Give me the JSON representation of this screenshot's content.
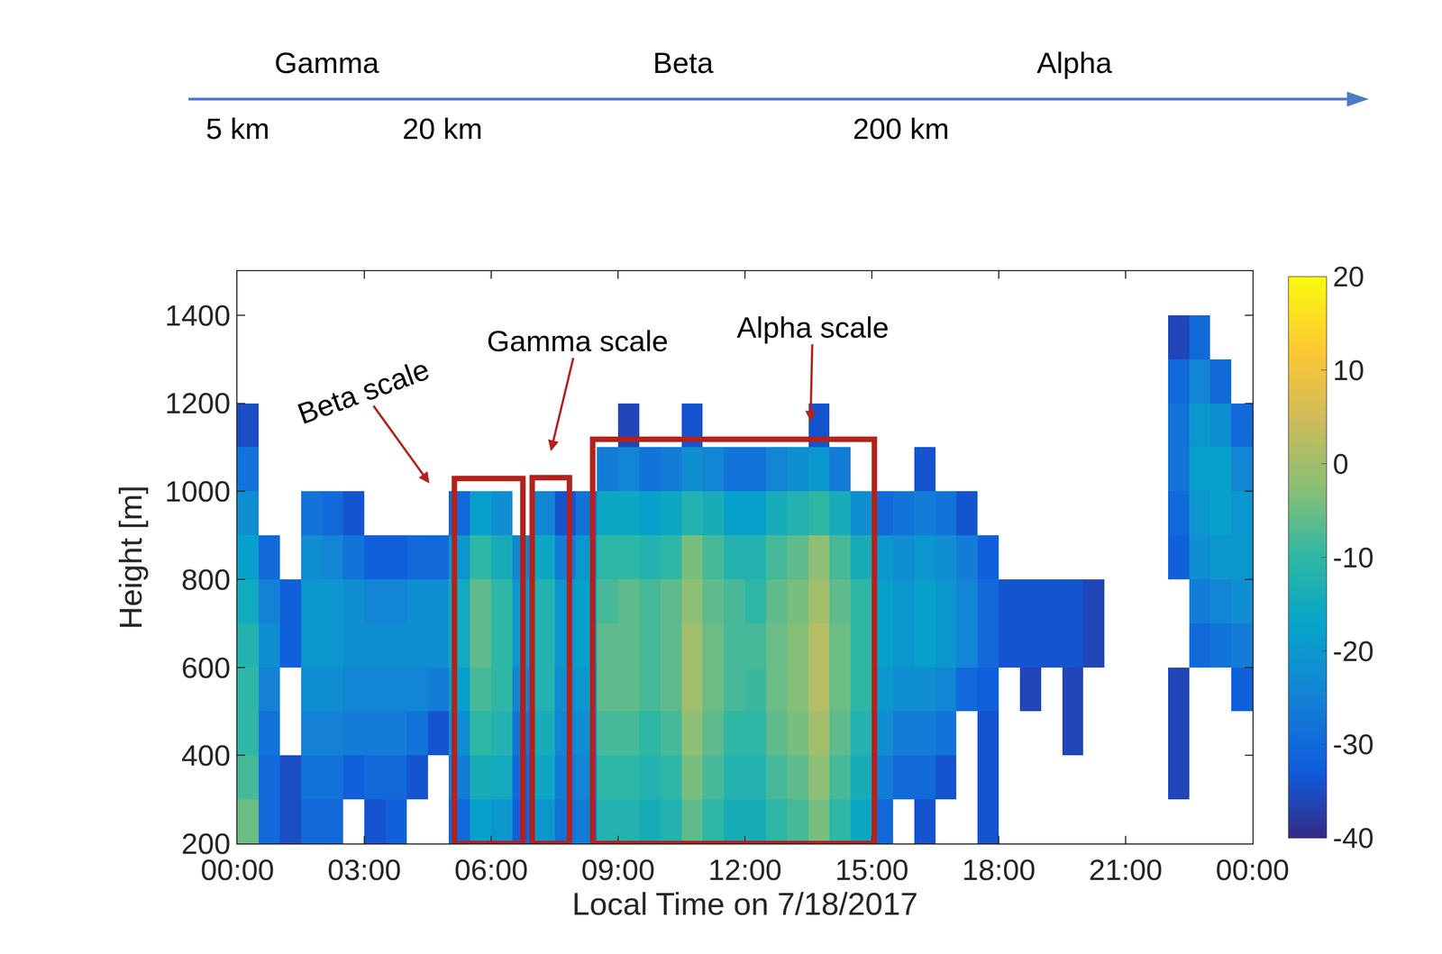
{
  "chart_data": {
    "type": "heatmap",
    "x_label": "Local Time on 7/18/2017",
    "y_label": "Height [m]",
    "xlim": [
      0,
      24
    ],
    "xticks": [
      {
        "value": 0,
        "label": "00:00"
      },
      {
        "value": 3,
        "label": "03:00"
      },
      {
        "value": 6,
        "label": "06:00"
      },
      {
        "value": 9,
        "label": "09:00"
      },
      {
        "value": 12,
        "label": "12:00"
      },
      {
        "value": 15,
        "label": "15:00"
      },
      {
        "value": 18,
        "label": "18:00"
      },
      {
        "value": 21,
        "label": "21:00"
      },
      {
        "value": 24,
        "label": "00:00"
      }
    ],
    "ylim": [
      200,
      1500
    ],
    "yticks": [
      200,
      400,
      600,
      800,
      1000,
      1200,
      1400
    ],
    "zlim": [
      -40,
      20
    ],
    "zticks": [
      -40,
      -30,
      -20,
      -10,
      0,
      10,
      20
    ],
    "x": [
      0.25,
      0.75,
      1.25,
      1.75,
      2.25,
      2.75,
      3.25,
      3.75,
      4.25,
      4.75,
      5.25,
      5.75,
      6.25,
      6.75,
      7.25,
      7.75,
      8.25,
      8.75,
      9.25,
      9.75,
      10.25,
      10.75,
      11.25,
      11.75,
      12.25,
      12.75,
      13.25,
      13.75,
      14.25,
      14.75,
      15.25,
      15.75,
      16.25,
      16.75,
      17.25,
      17.75,
      18.25,
      18.75,
      19.25,
      19.75,
      20.25,
      20.75,
      21.25,
      21.75,
      22.25,
      22.75,
      23.25,
      23.75
    ],
    "y": [
      250,
      350,
      450,
      550,
      650,
      750,
      850,
      950,
      1050,
      1150,
      1250,
      1350,
      1450
    ],
    "cells_by_time": [
      [
        -5,
        -8,
        -10,
        -10,
        -12,
        -15,
        -18,
        -22,
        -28,
        -35,
        null,
        null,
        null
      ],
      [
        -30,
        -30,
        -28,
        -25,
        -22,
        -25,
        -30,
        null,
        null,
        null,
        null,
        null,
        null
      ],
      [
        -35,
        -35,
        null,
        null,
        -32,
        -32,
        null,
        null,
        null,
        null,
        null,
        null,
        null
      ],
      [
        -30,
        -28,
        -25,
        -22,
        -20,
        -20,
        -22,
        -28,
        null,
        null,
        null,
        null,
        null
      ],
      [
        -30,
        -28,
        -25,
        -22,
        -20,
        -20,
        -24,
        -30,
        null,
        null,
        null,
        null,
        null
      ],
      [
        null,
        -32,
        -26,
        -24,
        -22,
        -22,
        -28,
        -34,
        null,
        null,
        null,
        null,
        null
      ],
      [
        -34,
        -30,
        -26,
        -24,
        -22,
        -24,
        -32,
        null,
        null,
        null,
        null,
        null,
        null
      ],
      [
        -32,
        -30,
        -26,
        -24,
        -22,
        -24,
        -32,
        null,
        null,
        null,
        null,
        null,
        null
      ],
      [
        null,
        -34,
        -28,
        -24,
        -22,
        -22,
        -30,
        null,
        null,
        null,
        null,
        null,
        null
      ],
      [
        null,
        null,
        -34,
        -26,
        -22,
        -22,
        -30,
        null,
        null,
        null,
        null,
        null,
        null
      ],
      [
        -30,
        -26,
        -22,
        -18,
        -15,
        -15,
        -20,
        -30,
        null,
        null,
        null,
        null,
        null
      ],
      [
        -18,
        -14,
        -10,
        -8,
        -6,
        -6,
        -10,
        -18,
        null,
        null,
        null,
        null,
        null
      ],
      [
        -20,
        -15,
        -12,
        -10,
        -10,
        -10,
        -14,
        -22,
        null,
        null,
        null,
        null,
        null
      ],
      [
        -32,
        -30,
        -28,
        -24,
        -20,
        -20,
        -24,
        null,
        null,
        null,
        null,
        null,
        null
      ],
      [
        -20,
        -16,
        -14,
        -12,
        -12,
        -12,
        -16,
        -24,
        null,
        null,
        null,
        null,
        null
      ],
      [
        -28,
        -26,
        -24,
        -22,
        -20,
        -20,
        -26,
        -34,
        null,
        null,
        null,
        null,
        null
      ],
      [
        -26,
        -24,
        -22,
        -20,
        -18,
        -18,
        -20,
        -28,
        null,
        null,
        null,
        null,
        null
      ],
      [
        -12,
        -10,
        -8,
        -6,
        -6,
        -8,
        -10,
        -16,
        -26,
        null,
        null,
        null,
        null
      ],
      [
        -12,
        -10,
        -8,
        -6,
        -6,
        -6,
        -10,
        -16,
        -24,
        -36,
        null,
        null,
        null
      ],
      [
        -14,
        -12,
        -10,
        -8,
        -8,
        -8,
        -12,
        -18,
        -28,
        null,
        null,
        null,
        null
      ],
      [
        -12,
        -10,
        -8,
        -6,
        -6,
        -6,
        -10,
        -16,
        -26,
        null,
        null,
        null,
        null
      ],
      [
        -6,
        -4,
        -2,
        0,
        0,
        -2,
        -4,
        -12,
        -22,
        -34,
        null,
        null,
        null
      ],
      [
        -10,
        -8,
        -6,
        -5,
        -5,
        -6,
        -8,
        -14,
        -24,
        null,
        null,
        null,
        null
      ],
      [
        -14,
        -12,
        -10,
        -8,
        -8,
        -8,
        -12,
        -18,
        -28,
        null,
        null,
        null,
        null
      ],
      [
        -14,
        -12,
        -10,
        -9,
        -8,
        -10,
        -12,
        -18,
        -28,
        null,
        null,
        null,
        null
      ],
      [
        -10,
        -8,
        -6,
        -5,
        -5,
        -6,
        -8,
        -14,
        -24,
        null,
        null,
        null,
        null
      ],
      [
        -8,
        -6,
        -4,
        -3,
        -3,
        -4,
        -6,
        -12,
        -22,
        null,
        null,
        null,
        null
      ],
      [
        -4,
        -2,
        0,
        2,
        2,
        0,
        -2,
        -10,
        -20,
        -34,
        null,
        null,
        null
      ],
      [
        -10,
        -8,
        -6,
        -5,
        -5,
        -6,
        -8,
        -14,
        -26,
        null,
        null,
        null,
        null
      ],
      [
        -16,
        -14,
        -12,
        -10,
        -10,
        -10,
        -14,
        -22,
        null,
        null,
        null,
        null,
        null
      ],
      [
        -30,
        -26,
        -22,
        -20,
        -18,
        -18,
        -20,
        -30,
        null,
        null,
        null,
        null,
        null
      ],
      [
        null,
        -30,
        -26,
        -22,
        -20,
        -20,
        -22,
        -28,
        null,
        null,
        null,
        null,
        null
      ],
      [
        -34,
        -30,
        -26,
        -22,
        -18,
        -18,
        -20,
        -26,
        -34,
        null,
        null,
        null,
        null
      ],
      [
        null,
        -34,
        -28,
        -24,
        -20,
        -20,
        -22,
        -28,
        null,
        null,
        null,
        null,
        null
      ],
      [
        null,
        null,
        null,
        -30,
        -24,
        -24,
        -26,
        -34,
        null,
        null,
        null,
        null,
        null
      ],
      [
        -34,
        -34,
        -34,
        -32,
        -30,
        -30,
        -32,
        null,
        null,
        null,
        null,
        null,
        null
      ],
      [
        null,
        null,
        null,
        null,
        -34,
        -34,
        null,
        null,
        null,
        null,
        null,
        null,
        null
      ],
      [
        null,
        null,
        null,
        -36,
        -34,
        -34,
        null,
        null,
        null,
        null,
        null,
        null,
        null
      ],
      [
        null,
        null,
        null,
        null,
        -34,
        -34,
        null,
        null,
        null,
        null,
        null,
        null,
        null
      ],
      [
        null,
        null,
        -36,
        -36,
        -34,
        -34,
        null,
        null,
        null,
        null,
        null,
        null,
        null
      ],
      [
        null,
        null,
        null,
        null,
        -36,
        -36,
        null,
        null,
        null,
        null,
        null,
        null,
        null
      ],
      [
        null,
        null,
        null,
        null,
        null,
        null,
        null,
        null,
        null,
        null,
        null,
        null,
        null
      ],
      [
        null,
        null,
        null,
        null,
        null,
        null,
        null,
        null,
        null,
        null,
        null,
        null,
        null
      ],
      [
        null,
        null,
        null,
        null,
        null,
        null,
        null,
        null,
        null,
        null,
        null,
        null,
        null
      ],
      [
        null,
        -36,
        -36,
        -36,
        null,
        null,
        -32,
        -30,
        -28,
        -28,
        -30,
        -36,
        null
      ],
      [
        null,
        null,
        null,
        null,
        -30,
        -26,
        -22,
        -20,
        -18,
        -20,
        -24,
        -30,
        null
      ],
      [
        null,
        null,
        null,
        null,
        -28,
        -24,
        -20,
        -18,
        -18,
        -22,
        -30,
        null,
        null
      ],
      [
        null,
        null,
        null,
        -32,
        -26,
        -22,
        -20,
        -20,
        -24,
        -30,
        null,
        null,
        null
      ]
    ],
    "boxes": [
      {
        "x": [
          5.13,
          6.75
        ],
        "y": [
          200,
          1029
        ]
      },
      {
        "x": [
          6.97,
          7.85
        ],
        "y": [
          200,
          1031
        ]
      },
      {
        "x": [
          8.4,
          15.06
        ],
        "y": [
          200,
          1118
        ]
      }
    ],
    "annotations": [
      {
        "text": "Beta scale",
        "x": 4.54,
        "y": 1018,
        "text_x": 2.97,
        "text_y": 1227
      },
      {
        "text": "Gamma scale",
        "x": 7.41,
        "y": 1091,
        "text_x": 8.04,
        "text_y": 1342
      },
      {
        "text": "Alpha scale",
        "x": 13.55,
        "y": 1158,
        "text_x": 13.6,
        "text_y": 1373
      }
    ],
    "scale_bar": {
      "classes": [
        "Gamma",
        "Beta",
        "Alpha"
      ],
      "lengths": [
        "5 km",
        "20 km",
        "200 km"
      ]
    }
  }
}
